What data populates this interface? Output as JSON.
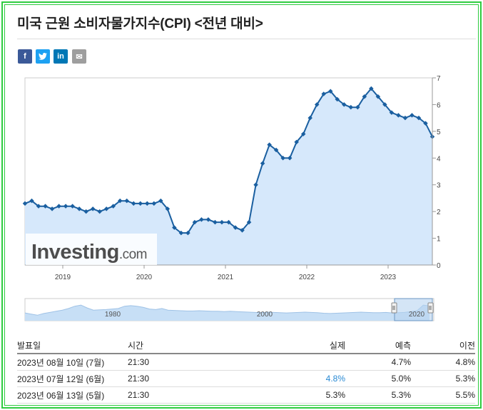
{
  "title": "미국 근원 소비자물가지수(CPI) <전년 대비>",
  "share": {
    "facebook": "f",
    "twitter": "t",
    "linkedin": "in",
    "email": "✉"
  },
  "watermark": {
    "main": "Investing",
    "suffix": ".com"
  },
  "colors": {
    "line": "#1a5fa0",
    "fill": "#d6e8fb",
    "nav": "#c7dff6",
    "green": "#2ecc40",
    "actual_blue": "#2a8ad4"
  },
  "chart_data": {
    "type": "area",
    "title": "",
    "xlabel": "",
    "ylabel": "",
    "x_ticks": [
      "2019",
      "2020",
      "2021",
      "2022",
      "2023"
    ],
    "y_ticks": [
      "0",
      "1",
      "2",
      "3",
      "4",
      "5",
      "6",
      "7"
    ],
    "ylim": [
      0,
      7
    ],
    "grid": false,
    "y_axis_side": "right",
    "series": [
      {
        "values": [
          2.3,
          2.4,
          2.2,
          2.2,
          2.1,
          2.2,
          2.2,
          2.2,
          2.1,
          2.0,
          2.1,
          2.0,
          2.1,
          2.2,
          2.4,
          2.4,
          2.3,
          2.3,
          2.3,
          2.3,
          2.4,
          2.1,
          1.4,
          1.2,
          1.2,
          1.6,
          1.7,
          1.7,
          1.6,
          1.6,
          1.6,
          1.4,
          1.3,
          1.6,
          3.0,
          3.8,
          4.5,
          4.3,
          4.0,
          4.0,
          4.6,
          4.9,
          5.5,
          6.0,
          6.4,
          6.5,
          6.2,
          6.0,
          5.9,
          5.9,
          6.3,
          6.6,
          6.3,
          6.0,
          5.7,
          5.6,
          5.5,
          5.6,
          5.5,
          5.3,
          4.8
        ]
      }
    ],
    "navigator_ticks": [
      "1980",
      "2000",
      "2020"
    ]
  },
  "table": {
    "headers": [
      "발표일",
      "시간",
      "실제",
      "예측",
      "이전"
    ],
    "rows": [
      {
        "date": "2023년 08월 10일 (7월)",
        "time": "21:30",
        "actual": "",
        "forecast": "4.7%",
        "previous": "4.8%"
      },
      {
        "date": "2023년 07월 12일 (6월)",
        "time": "21:30",
        "actual": "4.8%",
        "forecast": "5.0%",
        "previous": "5.3%"
      },
      {
        "date": "2023년 06월 13일 (5월)",
        "time": "21:30",
        "actual": "5.3%",
        "forecast": "5.3%",
        "previous": "5.5%"
      }
    ]
  }
}
